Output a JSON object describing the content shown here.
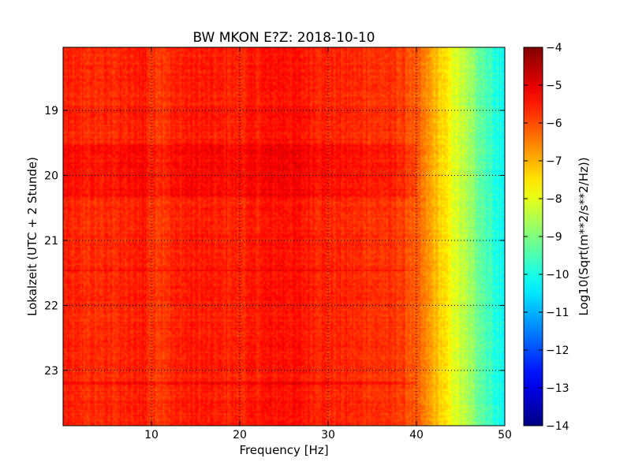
{
  "chart_data": {
    "type": "heatmap",
    "title": "BW MKON E?Z: 2018-10-10",
    "xlabel": "Frequency [Hz]",
    "ylabel": "Lokalzeit (UTC + 2 Stunde)",
    "colorbar_label": "Log10(Sqrt(m**2/s**2/Hz))",
    "xlim": [
      0,
      50
    ],
    "ylim": [
      18.03,
      23.85
    ],
    "y_inverted": true,
    "clim": [
      -14,
      -4
    ],
    "colormap": "jet",
    "grid": true,
    "x_ticks": [
      10,
      20,
      30,
      40,
      50
    ],
    "x_tick_labels": [
      "10",
      "20",
      "30",
      "40",
      "50"
    ],
    "y_ticks": [
      19,
      20,
      21,
      22,
      23
    ],
    "y_tick_labels": [
      "19",
      "20",
      "21",
      "22",
      "23"
    ],
    "colorbar_ticks": [
      -4,
      -5,
      -6,
      -7,
      -8,
      -9,
      -10,
      -11,
      -12,
      -13,
      -14
    ],
    "colorbar_tick_labels": [
      "−4",
      "−5",
      "−6",
      "−7",
      "−8",
      "−9",
      "−10",
      "−11",
      "−12",
      "−13",
      "−14"
    ],
    "frequency_profile": {
      "x": [
        0,
        3,
        8,
        9,
        10,
        13,
        14,
        20,
        25,
        30,
        35,
        38,
        40,
        41,
        42,
        43,
        44,
        45,
        46,
        47,
        48,
        49,
        50
      ],
      "values": [
        -5.6,
        -5.7,
        -5.6,
        -5.4,
        -5.8,
        -5.6,
        -5.5,
        -5.6,
        -5.35,
        -5.6,
        -5.7,
        -5.8,
        -6.2,
        -6.6,
        -7.0,
        -7.4,
        -7.9,
        -8.3,
        -8.7,
        -9.1,
        -9.5,
        -9.9,
        -10.2
      ]
    },
    "time_bands": [
      {
        "t0": 19.5,
        "t1": 20.3,
        "offset": 0.25
      },
      {
        "t0": 20.3,
        "t1": 20.33,
        "offset": 0.35
      },
      {
        "t0": 21.45,
        "t1": 21.48,
        "offset": 0.3
      },
      {
        "t0": 23.18,
        "t1": 23.22,
        "offset": 0.35
      },
      {
        "t0": 23.45,
        "t1": 23.5,
        "offset": 0.2
      }
    ]
  }
}
